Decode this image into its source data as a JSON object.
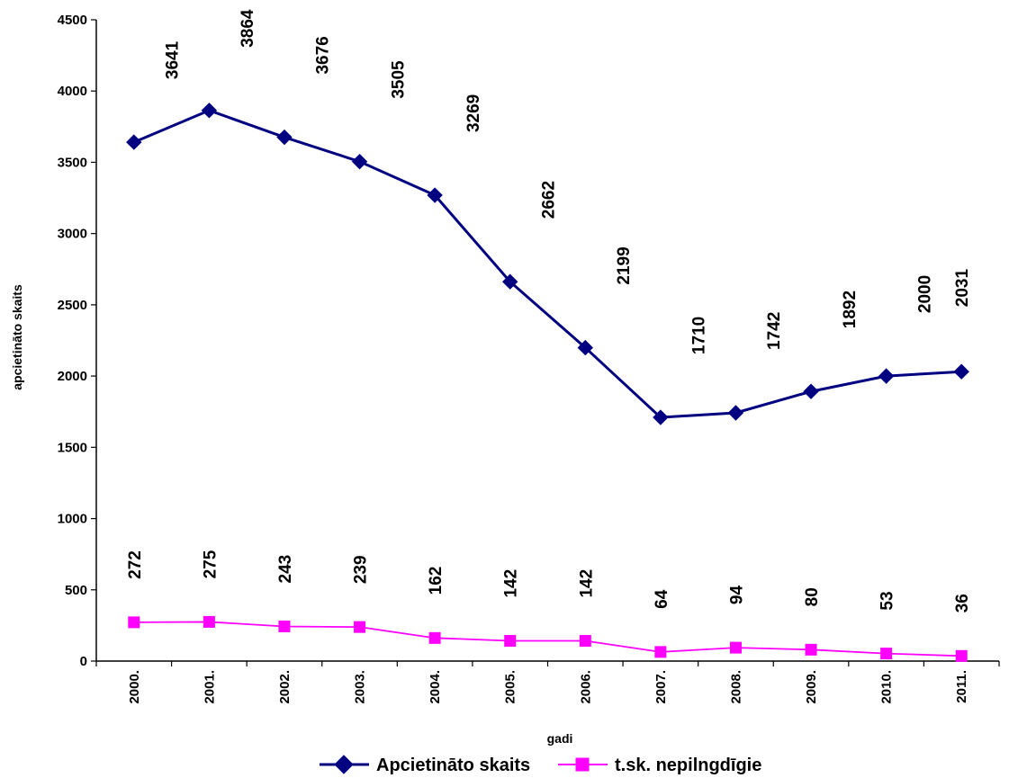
{
  "chart_data": {
    "type": "line",
    "xlabel": "gadi",
    "ylabel": "apcietināto skaits",
    "ylim": [
      0,
      4500
    ],
    "yticks": [
      0,
      500,
      1000,
      1500,
      2000,
      2500,
      3000,
      3500,
      4000,
      4500
    ],
    "categories": [
      "2000.",
      "2001.",
      "2002.",
      "2003.",
      "2004.",
      "2005.",
      "2006.",
      "2007.",
      "2008.",
      "2009.",
      "2010.",
      "2011."
    ],
    "series": [
      {
        "name": "Apcietināto skaits",
        "color": "#000080",
        "marker": "diamond",
        "values": [
          3641,
          3864,
          3676,
          3505,
          3269,
          2662,
          2199,
          1710,
          1742,
          1892,
          2000,
          2031
        ]
      },
      {
        "name": "t.sk. nepilngdīgie",
        "color": "#ff00ff",
        "marker": "square",
        "values": [
          272,
          275,
          243,
          239,
          162,
          142,
          142,
          64,
          94,
          80,
          53,
          36
        ]
      }
    ],
    "legend": "bottom",
    "grid": false
  }
}
